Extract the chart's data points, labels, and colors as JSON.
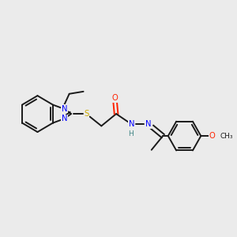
{
  "background_color": "#ebebeb",
  "bond_color": "#1a1a1a",
  "atom_colors": {
    "N": "#0000ff",
    "S": "#ccaa00",
    "O": "#ff2200",
    "H": "#448888",
    "C": "#1a1a1a"
  },
  "figsize": [
    3.0,
    3.0
  ],
  "dpi": 100
}
